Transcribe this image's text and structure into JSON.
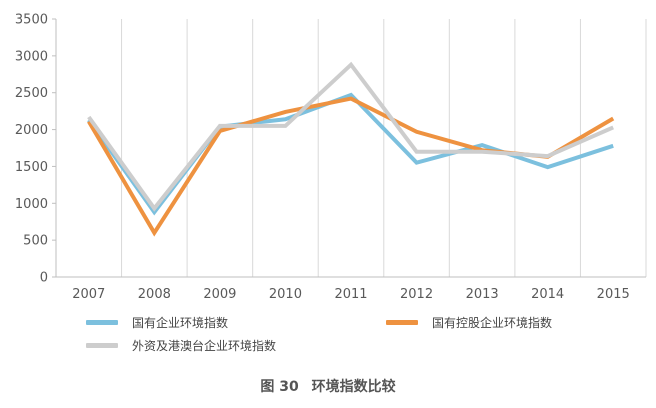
{
  "chart_data": {
    "type": "line",
    "x": [
      "2007",
      "2008",
      "2009",
      "2010",
      "2011",
      "2012",
      "2013",
      "2014",
      "2015"
    ],
    "y_ticks": [
      "0",
      "500",
      "1000",
      "1500",
      "2000",
      "2500",
      "3000",
      "3500"
    ],
    "ylim": [
      0,
      3500
    ],
    "grid": "vertical",
    "legend_position": "bottom",
    "series": [
      {
        "name": "国有企业环境指数",
        "color": "#7cc0de",
        "values": [
          2130,
          880,
          2040,
          2140,
          2470,
          1550,
          1790,
          1490,
          1780
        ]
      },
      {
        "name": "国有控股企业环境指数",
        "color": "#ee9240",
        "values": [
          2110,
          600,
          1980,
          2240,
          2420,
          1970,
          1720,
          1630,
          2150
        ]
      },
      {
        "name": "外资及港澳台企业环境指数",
        "color": "#cdcdcd",
        "values": [
          2170,
          930,
          2050,
          2050,
          2880,
          1700,
          1700,
          1640,
          2030
        ]
      }
    ]
  },
  "caption": {
    "figure_no": "图 30",
    "title": "环境指数比较"
  }
}
